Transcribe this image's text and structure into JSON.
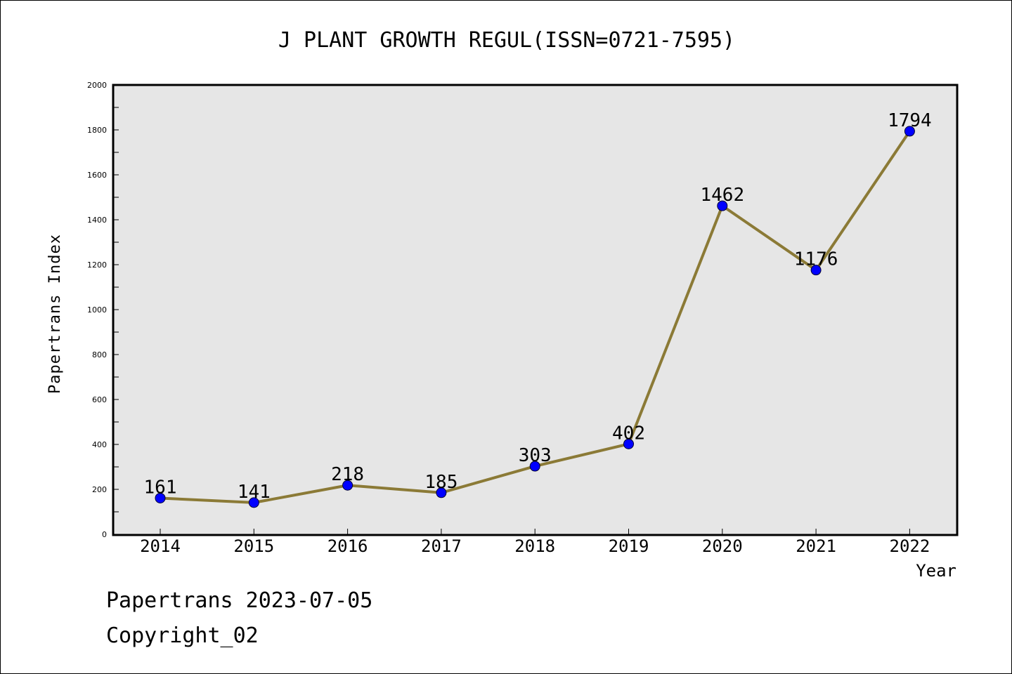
{
  "chart_data": {
    "type": "line",
    "title": "J PLANT GROWTH REGUL(ISSN=0721-7595)",
    "xlabel": "Year",
    "ylabel": "Papertrans Index",
    "categories": [
      "2014",
      "2015",
      "2016",
      "2017",
      "2018",
      "2019",
      "2020",
      "2021",
      "2022"
    ],
    "values": [
      161,
      141,
      218,
      185,
      303,
      402,
      1462,
      1176,
      1794
    ],
    "ylim": [
      0,
      2000
    ],
    "yticks": [
      0,
      200,
      400,
      600,
      800,
      1000,
      1200,
      1400,
      1600,
      1800,
      2000
    ],
    "grid": false,
    "colors": {
      "line": "#8B7A36",
      "marker": "#0000FF",
      "plot_background": "#E6E6E6",
      "frame": "#000000"
    }
  },
  "footer": {
    "line1": "Papertrans 2023-07-05",
    "line2": "Copyright_02"
  }
}
